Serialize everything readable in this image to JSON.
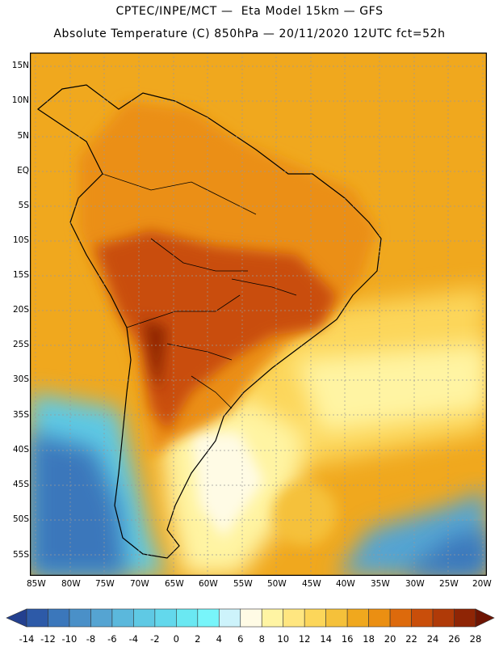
{
  "title_line1": "CPTEC/INPE/MCT —  Eta Model 15km — GFS",
  "title_line2": "Absolute Temperature (C) 850hPa — 20/11/2020 12UTC fct=52h",
  "lat_labels": [
    "15N",
    "10N",
    "5N",
    "EQ",
    "5S",
    "10S",
    "15S",
    "20S",
    "25S",
    "30S",
    "35S",
    "40S",
    "45S",
    "50S",
    "55S"
  ],
  "lon_labels": [
    "85W",
    "80W",
    "75W",
    "70W",
    "65W",
    "60W",
    "55W",
    "50W",
    "45W",
    "40W",
    "35W",
    "30W",
    "25W",
    "20W"
  ],
  "colorbar": {
    "labels": [
      "-14",
      "-12",
      "-10",
      "-8",
      "-6",
      "-4",
      "-2",
      "0",
      "2",
      "4",
      "6",
      "8",
      "10",
      "12",
      "14",
      "16",
      "18",
      "20",
      "22",
      "24",
      "26",
      "28"
    ],
    "colors": [
      "#23408f",
      "#2d5aa8",
      "#3b77bb",
      "#4a90c8",
      "#55a4d2",
      "#5bb8dc",
      "#5fc9e4",
      "#63d8ec",
      "#6ae8f2",
      "#78f5fa",
      "#cdf3fb",
      "#fffbe5",
      "#fff4a3",
      "#ffe680",
      "#fcd65a",
      "#f5c13a",
      "#f0a81e",
      "#eb8f12",
      "#dd6a0c",
      "#c94e0a",
      "#b03a08",
      "#8f2505",
      "#6e1402"
    ]
  },
  "legend_colors": {
    "ocean_tropics": "#f0a81e",
    "warm_continent": "#eb8f12",
    "hot_core": "#c94e0a",
    "cold_south": "#55a4d2",
    "mild": "#fff4a3"
  }
}
